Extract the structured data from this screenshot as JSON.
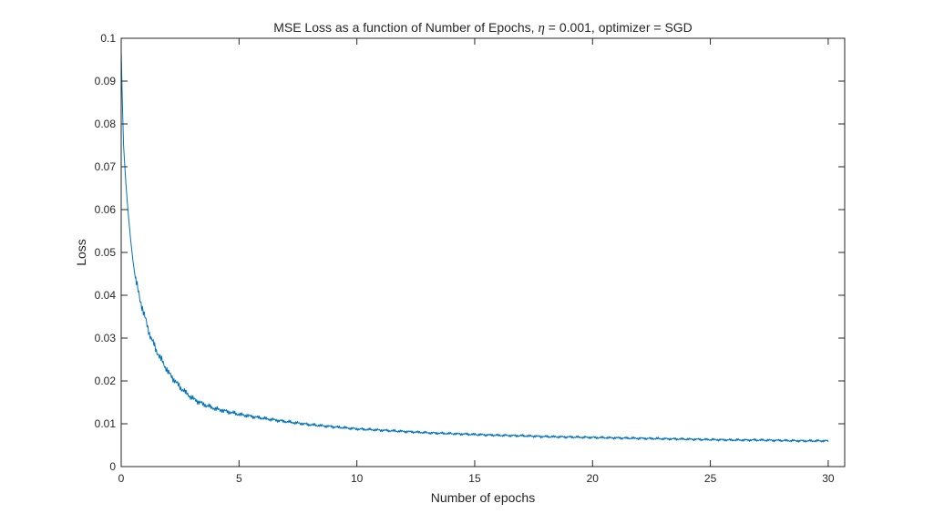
{
  "chart_data": {
    "type": "line",
    "title_before": "MSE Loss as a function of Number of Epochs, ",
    "title_symbol": "η",
    "title_after": " = 0.001, optimizer = SGD",
    "xlabel": "Number of epochs",
    "ylabel": "Loss",
    "xlim": [
      0,
      30.7
    ],
    "ylim": [
      0,
      0.1
    ],
    "xticks": [
      0,
      5,
      10,
      15,
      20,
      25,
      30
    ],
    "xtick_labels": [
      "0",
      "5",
      "10",
      "15",
      "20",
      "25",
      "30"
    ],
    "yticks": [
      0,
      0.01,
      0.02,
      0.03,
      0.04,
      0.05,
      0.06,
      0.07,
      0.08,
      0.09,
      0.1
    ],
    "ytick_labels": [
      "0",
      "0.01",
      "0.02",
      "0.03",
      "0.04",
      "0.05",
      "0.06",
      "0.07",
      "0.08",
      "0.09",
      "0.1"
    ],
    "grid": false,
    "box": true,
    "series": [
      {
        "color": "#0072BD",
        "x": [
          0,
          0.05,
          0.1,
          0.2,
          0.3,
          0.4,
          0.5,
          0.6,
          0.8,
          1.0,
          1.2,
          1.5,
          1.8,
          2.0,
          2.5,
          3.0,
          3.5,
          4.0,
          5.0,
          6.0,
          7.0,
          8.0,
          9.0,
          10.0,
          11.0,
          12.0,
          13.0,
          14.0,
          15.0,
          16.0,
          17.0,
          18.0,
          19.0,
          20.0,
          21.0,
          22.0,
          23.0,
          24.0,
          25.0,
          26.0,
          27.0,
          28.0,
          29.0,
          30.0
        ],
        "y": [
          0.097,
          0.085,
          0.075,
          0.066,
          0.059,
          0.053,
          0.048,
          0.044,
          0.039,
          0.035,
          0.031,
          0.027,
          0.024,
          0.022,
          0.0185,
          0.016,
          0.0145,
          0.0135,
          0.0122,
          0.0113,
          0.0105,
          0.0098,
          0.0093,
          0.0088,
          0.0085,
          0.0082,
          0.0079,
          0.0077,
          0.0075,
          0.0073,
          0.0072,
          0.007,
          0.0069,
          0.0068,
          0.0067,
          0.0066,
          0.0065,
          0.0064,
          0.0063,
          0.0062,
          0.0062,
          0.0061,
          0.006,
          0.006
        ]
      }
    ]
  }
}
